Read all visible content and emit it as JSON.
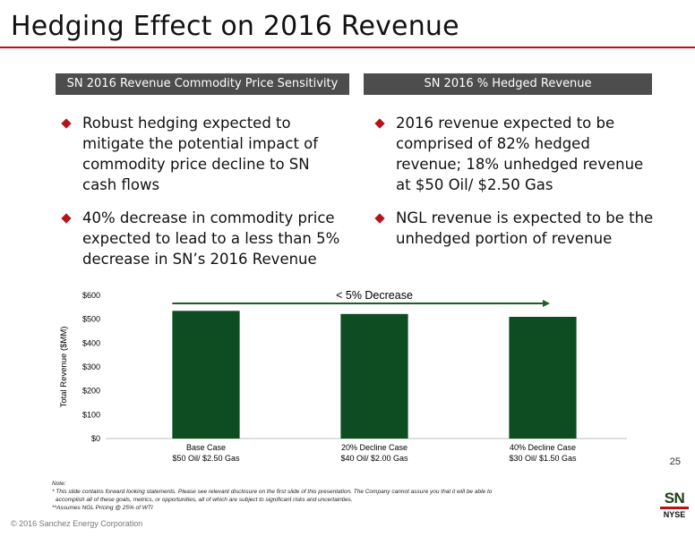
{
  "slide": {
    "title": "Hedging Effect on 2016 Revenue",
    "page_number": "25"
  },
  "left_panel": {
    "header": "SN 2016 Revenue Commodity Price Sensitivity",
    "bullets": [
      "Robust hedging expected to mitigate the potential impact of commodity price decline to SN cash flows",
      "40% decrease in commodity price expected to lead to a less than 5% decrease in SN’s 2016 Revenue"
    ]
  },
  "right_panel": {
    "header": "SN 2016 % Hedged Revenue",
    "bullets": [
      "2016 revenue expected to be comprised of 82% hedged revenue; 18% unhedged revenue at $50 Oil/ $2.50 Gas",
      "NGL revenue is expected to be the unhedged portion of revenue"
    ]
  },
  "chart_data": {
    "type": "bar",
    "categories": [
      [
        "Base Case",
        "$50 Oil/ $2.50 Gas"
      ],
      [
        "20% Decline Case",
        "$40 Oil/ $2.00 Gas"
      ],
      [
        "40% Decline Case",
        "$30 Oil/ $1.50 Gas"
      ]
    ],
    "values": [
      535,
      522,
      510
    ],
    "ylabel": "Total Revenue ($MM)",
    "ylim": [
      0,
      600
    ],
    "yticks": [
      0,
      100,
      200,
      300,
      400,
      500,
      600
    ],
    "ytick_labels": [
      "$0",
      "$100",
      "$200",
      "$300",
      "$400",
      "$500",
      "$600"
    ],
    "grid": false,
    "annotation": "< 5% Decrease",
    "bar_color": "#0e4d22",
    "arrow_color": "#1e5c2a"
  },
  "notes": {
    "label": "Note:",
    "lines": [
      "* This slide contains forward looking statements. Please see relevant disclosure on the first slide of this presentation. The Company cannot assure you that it will be able to",
      "accomplish all of these goals, metrics, or opportunities, all of which are subject to significant risks and uncertainties.",
      "**Assumes NGL Pricing @ 25% of WTI"
    ]
  },
  "footer": {
    "copyright": "© 2016 Sanchez Energy Corporation"
  },
  "logo": {
    "top": "SN",
    "bottom": "NYSE",
    "accent": "#b5121b"
  }
}
